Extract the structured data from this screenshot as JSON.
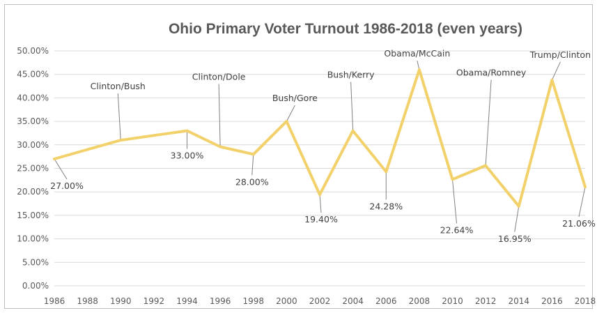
{
  "chart_data": {
    "type": "line",
    "title": "Ohio Primary Voter Turnout 1986-2018 (even years)",
    "xlabel": "",
    "ylabel": "",
    "x": [
      "1986",
      "1988",
      "1990",
      "1992",
      "1994",
      "1996",
      "1998",
      "2000",
      "2002",
      "2004",
      "2006",
      "2008",
      "2010",
      "2012",
      "2014",
      "2016",
      "2018"
    ],
    "ylim": [
      0,
      50
    ],
    "yticks": [
      "0.00%",
      "5.00%",
      "10.00%",
      "15.00%",
      "20.00%",
      "25.00%",
      "30.00%",
      "35.00%",
      "40.00%",
      "45.00%",
      "50.00%"
    ],
    "grid": true,
    "legend": "none",
    "series": [
      {
        "color": "#f2d16b",
        "values": [
          27.0,
          29.0,
          31.0,
          32.0,
          33.0,
          29.6,
          28.0,
          35.0,
          19.4,
          33.0,
          24.28,
          46.0,
          22.64,
          25.6,
          16.95,
          43.8,
          21.06
        ]
      }
    ],
    "annotations": [
      {
        "x": "1986",
        "text": "27.00%"
      },
      {
        "x": "1990",
        "text": "Clinton/Bush"
      },
      {
        "x": "1994",
        "text": "33.00%"
      },
      {
        "x": "1996",
        "text": "Clinton/Dole"
      },
      {
        "x": "1998",
        "text": "28.00%"
      },
      {
        "x": "2000",
        "text": "Bush/Gore"
      },
      {
        "x": "2002",
        "text": "19.40%"
      },
      {
        "x": "2004",
        "text": "Bush/Kerry"
      },
      {
        "x": "2006",
        "text": "24.28%"
      },
      {
        "x": "2008",
        "text": "Obama/McCain"
      },
      {
        "x": "2010",
        "text": "22.64%"
      },
      {
        "x": "2012",
        "text": "Obama/Romney"
      },
      {
        "x": "2014",
        "text": "16.95%"
      },
      {
        "x": "2016",
        "text": "Trump/Clinton"
      },
      {
        "x": "2018",
        "text": "21.06%"
      }
    ]
  }
}
